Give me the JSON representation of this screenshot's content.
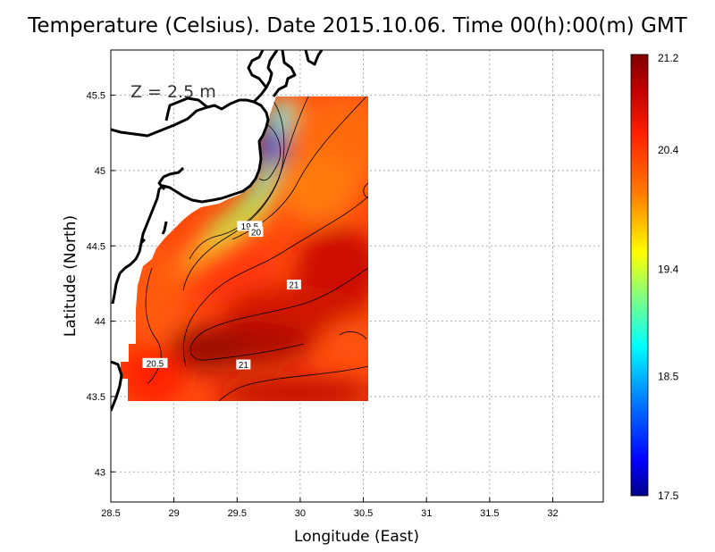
{
  "title": "Temperature (Celsius). Date 2015.10.06. Time 00(h):00(m) GMT",
  "depth_label": "Z = 2.5 m",
  "chart_data": {
    "type": "heatmap",
    "xlabel": "Longitude (East)",
    "ylabel": "Latitude (North)",
    "xlim": [
      28.5,
      32.4
    ],
    "ylim": [
      42.8,
      45.8
    ],
    "xticks": [
      "28.5",
      "29",
      "29.5",
      "30",
      "30.5",
      "31",
      "31.5",
      "32"
    ],
    "yticks": [
      "43",
      "43.5",
      "44",
      "44.5",
      "45",
      "45.5"
    ],
    "grid": true,
    "colorbar": {
      "min": 17.5,
      "max": 21.2,
      "tick_labels": [
        "17.5",
        "18.5",
        "19.4",
        "20.4",
        "21.2"
      ]
    },
    "contour_labels": [
      {
        "text": "19.5",
        "lon": 29.6,
        "lat": 44.63
      },
      {
        "text": "20",
        "lon": 29.65,
        "lat": 44.59
      },
      {
        "text": "21",
        "lon": 29.95,
        "lat": 44.24
      },
      {
        "text": "20.5",
        "lon": 28.85,
        "lat": 43.72
      },
      {
        "text": "21",
        "lon": 29.55,
        "lat": 43.71
      }
    ]
  },
  "colors": {
    "scale": [
      "#00008b",
      "#0000ff",
      "#0080ff",
      "#00ffff",
      "#80ff80",
      "#ffff00",
      "#ff8000",
      "#ff2000",
      "#b00000",
      "#800000"
    ]
  }
}
